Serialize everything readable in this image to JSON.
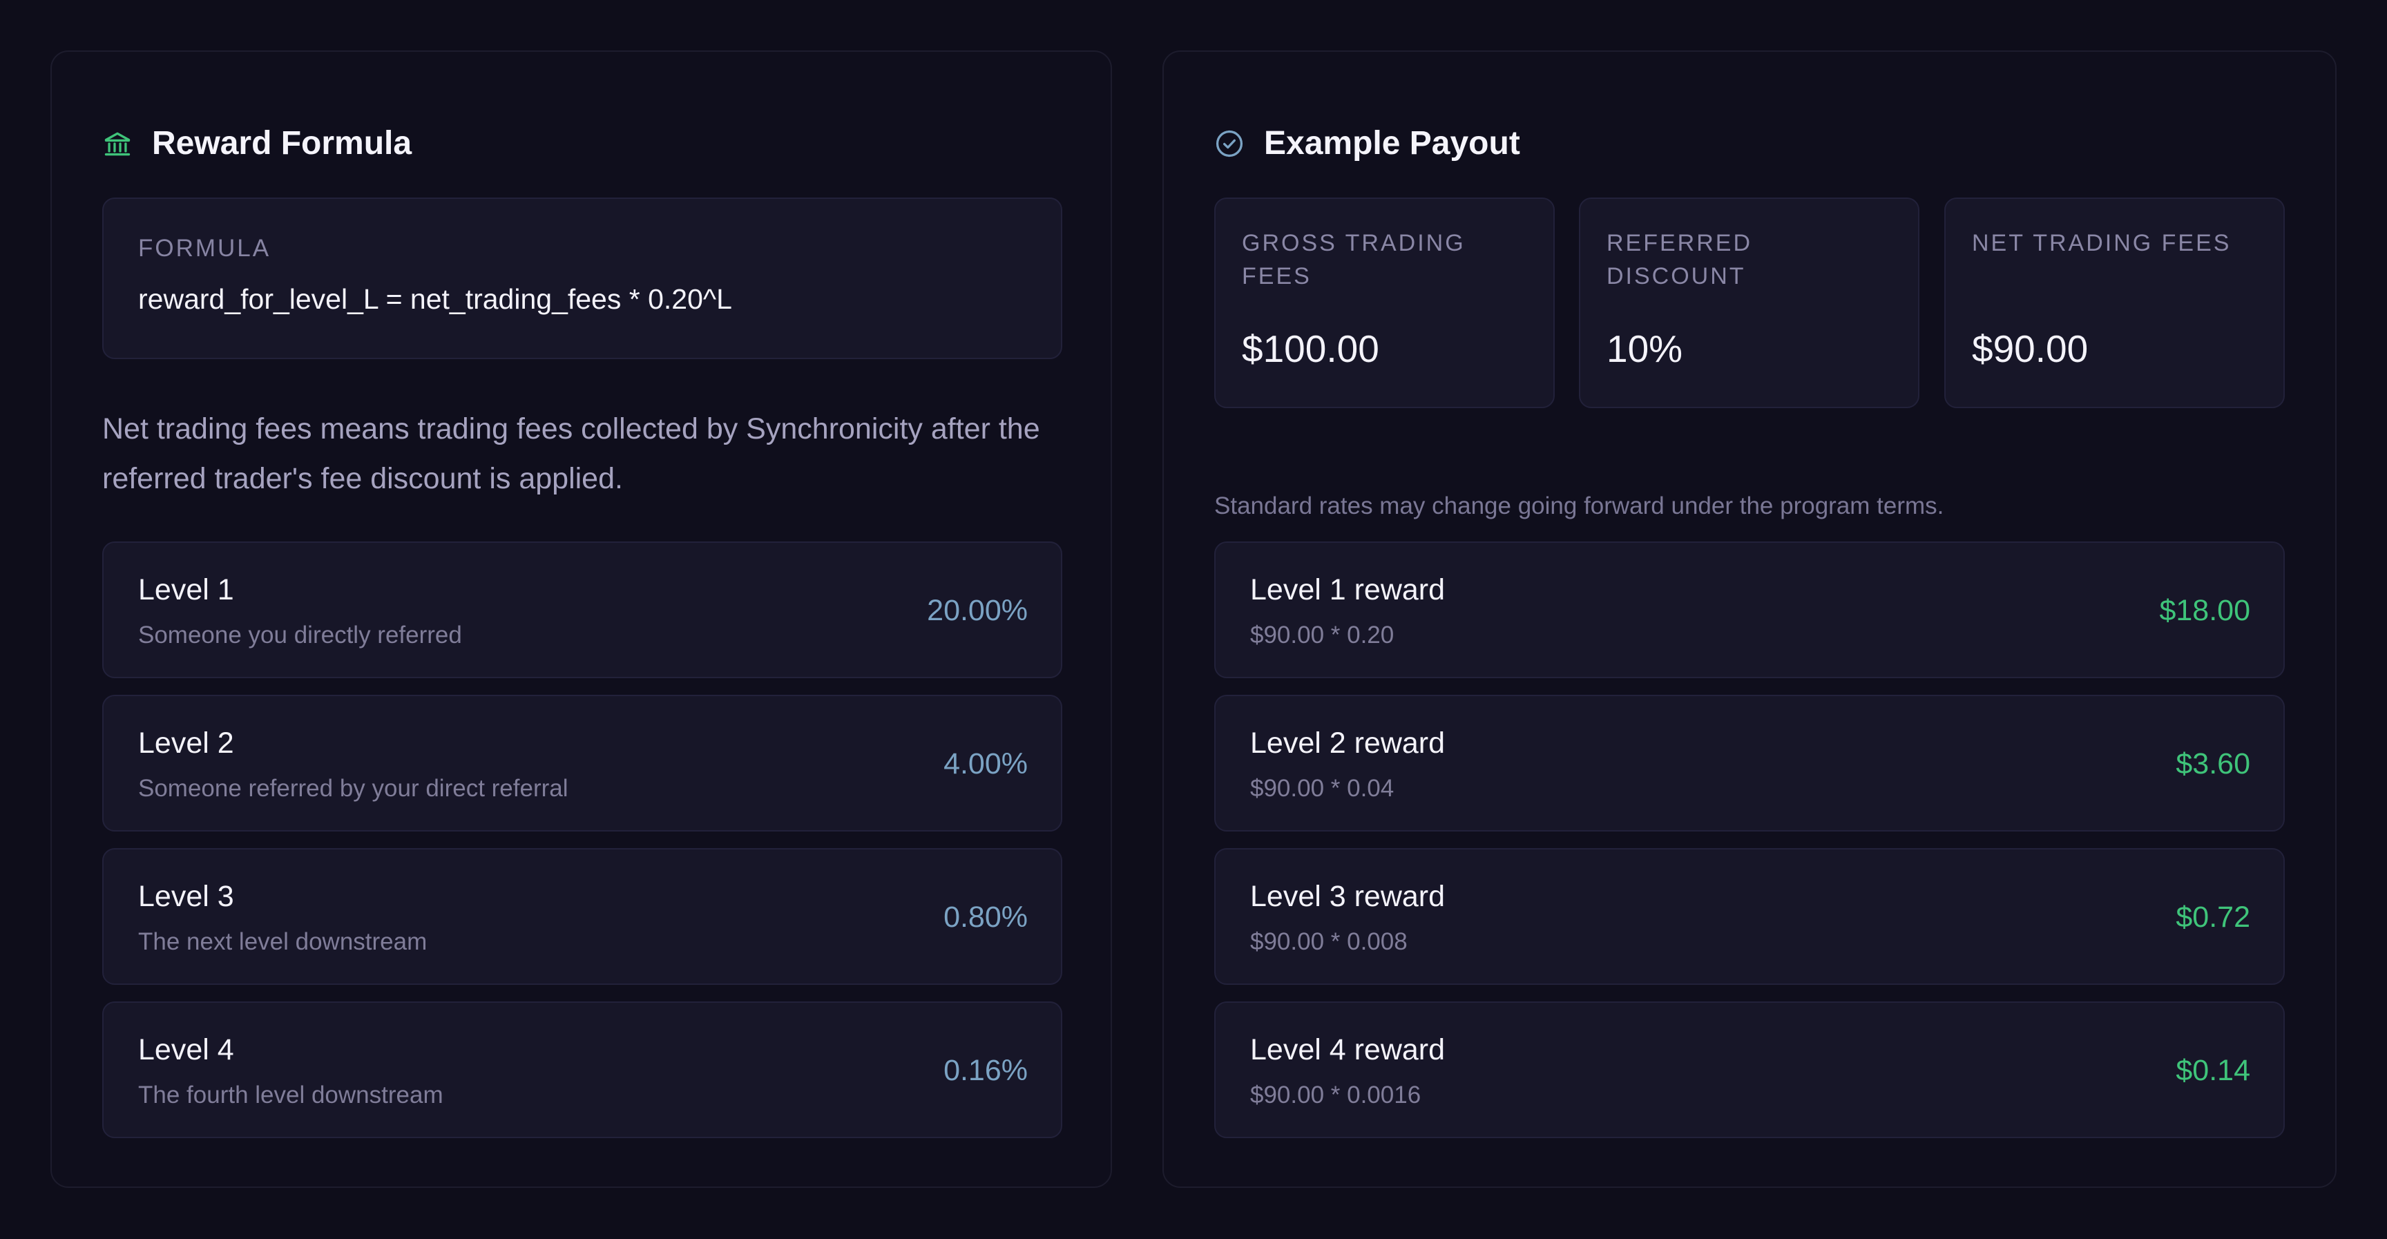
{
  "formula_panel": {
    "title": "Reward Formula",
    "icon": "bank-icon",
    "formula_label": "FORMULA",
    "formula": "reward_for_level_L = net_trading_fees * 0.20^L",
    "explanation": "Net trading fees means trading fees collected by Synchronicity after the referred trader's fee discount is applied.",
    "levels": [
      {
        "title": "Level 1",
        "subtitle": "Someone you directly referred",
        "rate": "20.00%"
      },
      {
        "title": "Level 2",
        "subtitle": "Someone referred by your direct referral",
        "rate": "4.00%"
      },
      {
        "title": "Level 3",
        "subtitle": "The next level downstream",
        "rate": "0.80%"
      },
      {
        "title": "Level 4",
        "subtitle": "The fourth level downstream",
        "rate": "0.16%"
      }
    ]
  },
  "payout_panel": {
    "title": "Example Payout",
    "icon": "check-circle-icon",
    "stats": [
      {
        "label": "GROSS TRADING FEES",
        "value": "$100.00"
      },
      {
        "label": "REFERRED DISCOUNT",
        "value": "10%"
      },
      {
        "label": "NET TRADING FEES",
        "value": "$90.00"
      }
    ],
    "note": "Standard rates may change going forward under the program terms.",
    "rewards": [
      {
        "title": "Level 1 reward",
        "calc": "$90.00 * 0.20",
        "amount": "$18.00"
      },
      {
        "title": "Level 2 reward",
        "calc": "$90.00 * 0.04",
        "amount": "$3.60"
      },
      {
        "title": "Level 3 reward",
        "calc": "$90.00 * 0.008",
        "amount": "$0.72"
      },
      {
        "title": "Level 4 reward",
        "calc": "$90.00 * 0.0016",
        "amount": "$0.14"
      }
    ]
  },
  "colors": {
    "background": "#0e0d1a",
    "card": "#171628",
    "rate_blue": "#7ba3c4",
    "reward_green": "#3fc47a",
    "bank_icon": "#3fc47a",
    "check_icon": "#7ba3c4"
  }
}
